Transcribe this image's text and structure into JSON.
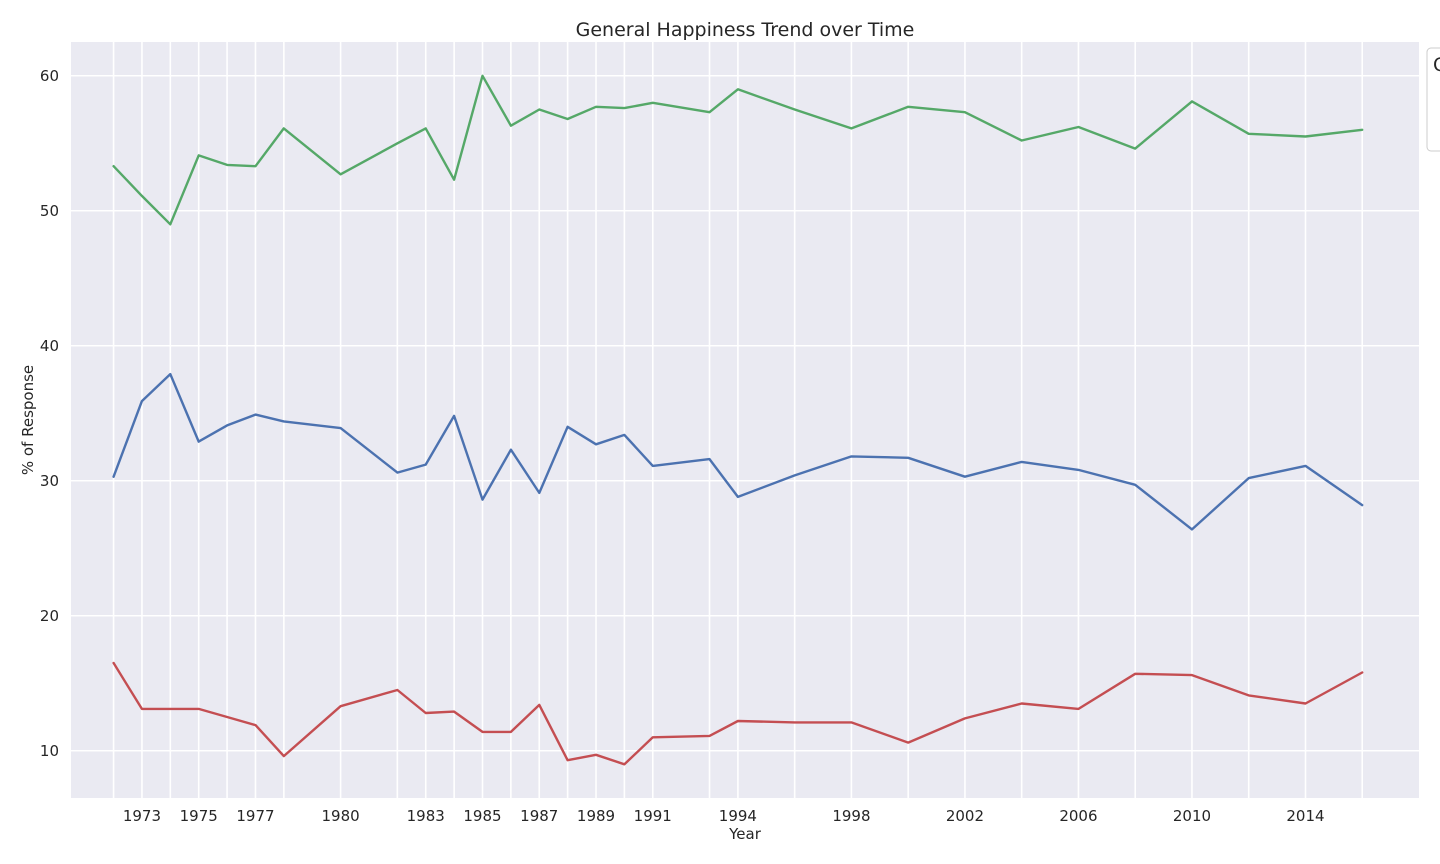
{
  "chart_data": {
    "type": "line",
    "title": "General Happiness Trend over Time",
    "xlabel": "Year",
    "ylabel": "% of Response",
    "xlim": [
      1970.5,
      2018.0
    ],
    "ylim": [
      6.5,
      62.5
    ],
    "yticks": [
      10,
      20,
      30,
      40,
      50,
      60
    ],
    "x": [
      1972,
      1973,
      1974,
      1975,
      1976,
      1977,
      1978,
      1980,
      1982,
      1983,
      1984,
      1985,
      1986,
      1987,
      1988,
      1989,
      1990,
      1991,
      1993,
      1994,
      1996,
      1998,
      2000,
      2002,
      2004,
      2006,
      2008,
      2010,
      2012,
      2014,
      2016
    ],
    "x_tick_labels": [
      {
        "pos": 1973,
        "label": "1973"
      },
      {
        "pos": 1975,
        "label": "1975"
      },
      {
        "pos": 1977,
        "label": "1977"
      },
      {
        "pos": 1980,
        "label": "1980"
      },
      {
        "pos": 1983,
        "label": "1983"
      },
      {
        "pos": 1985,
        "label": "1985"
      },
      {
        "pos": 1987,
        "label": "1987"
      },
      {
        "pos": 1989,
        "label": "1989"
      },
      {
        "pos": 1991,
        "label": "1991"
      },
      {
        "pos": 1994,
        "label": "1994"
      },
      {
        "pos": 1998,
        "label": "1998"
      },
      {
        "pos": 2002,
        "label": "2002"
      },
      {
        "pos": 2006,
        "label": "2006"
      },
      {
        "pos": 2010,
        "label": "2010"
      },
      {
        "pos": 2014,
        "label": "2014"
      }
    ],
    "grid": true,
    "legend_placement": "upper-right (clipped)",
    "legend_visible_text": "C",
    "series": [
      {
        "color": "#55a868",
        "values": [
          53.3,
          51.1,
          49.0,
          54.1,
          53.4,
          53.3,
          56.1,
          52.7,
          55.0,
          56.1,
          52.3,
          60.0,
          56.3,
          57.5,
          56.8,
          57.7,
          57.6,
          58.0,
          57.3,
          59.0,
          57.5,
          56.1,
          57.7,
          57.3,
          55.2,
          56.2,
          54.6,
          58.1,
          55.7,
          55.5,
          56.0
        ]
      },
      {
        "color": "#4c72b0",
        "values": [
          30.3,
          35.9,
          37.9,
          32.9,
          34.1,
          34.9,
          34.4,
          33.9,
          30.6,
          31.2,
          34.8,
          28.6,
          32.3,
          29.1,
          34.0,
          32.7,
          33.4,
          31.1,
          31.6,
          28.8,
          30.4,
          31.8,
          31.7,
          30.3,
          31.4,
          30.8,
          29.7,
          26.4,
          30.2,
          31.1,
          28.2
        ]
      },
      {
        "color": "#c44e52",
        "values": [
          16.5,
          13.1,
          13.1,
          13.1,
          12.5,
          11.9,
          9.6,
          13.3,
          14.5,
          12.8,
          12.9,
          11.4,
          11.4,
          13.4,
          9.3,
          9.7,
          9.0,
          11.0,
          11.1,
          12.2,
          12.1,
          12.1,
          10.6,
          12.4,
          13.5,
          13.1,
          15.7,
          15.6,
          14.1,
          13.5,
          15.8
        ]
      }
    ]
  }
}
